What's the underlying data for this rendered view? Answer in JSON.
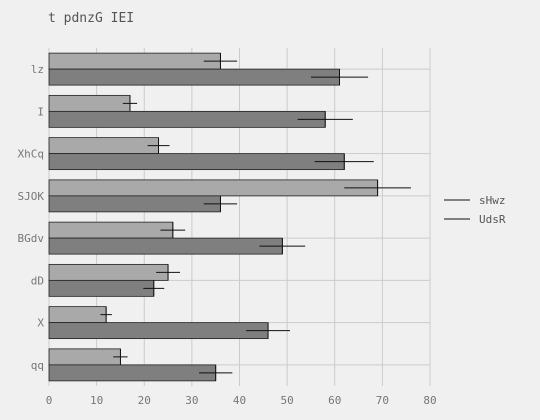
{
  "chart_data": {
    "type": "bar",
    "orientation": "horizontal",
    "title": "t pdnzG IEI",
    "xlabel": "",
    "ylabel": "",
    "xlim": [
      0,
      80
    ],
    "xticks": [
      0,
      10,
      20,
      30,
      40,
      50,
      60,
      70,
      80
    ],
    "grid": true,
    "legend_position": "right",
    "categories": [
      "lz",
      "I",
      "XhCq",
      "SJOK",
      "BGdv",
      "dD",
      "X",
      "qq"
    ],
    "series": [
      {
        "name": "sHwz",
        "color": "#a9a9a9",
        "values": [
          36,
          17,
          23,
          69,
          26,
          25,
          12,
          15
        ],
        "errors": [
          3.5,
          1.5,
          2.3,
          7,
          2.6,
          2.5,
          1.2,
          1.5
        ]
      },
      {
        "name": "UdsR",
        "color": "#7f7f7f",
        "values": [
          61,
          58,
          62,
          36,
          49,
          22,
          46,
          35
        ],
        "errors": [
          6,
          5.8,
          6.2,
          3.5,
          4.8,
          2.2,
          4.6,
          3.5
        ]
      }
    ]
  }
}
